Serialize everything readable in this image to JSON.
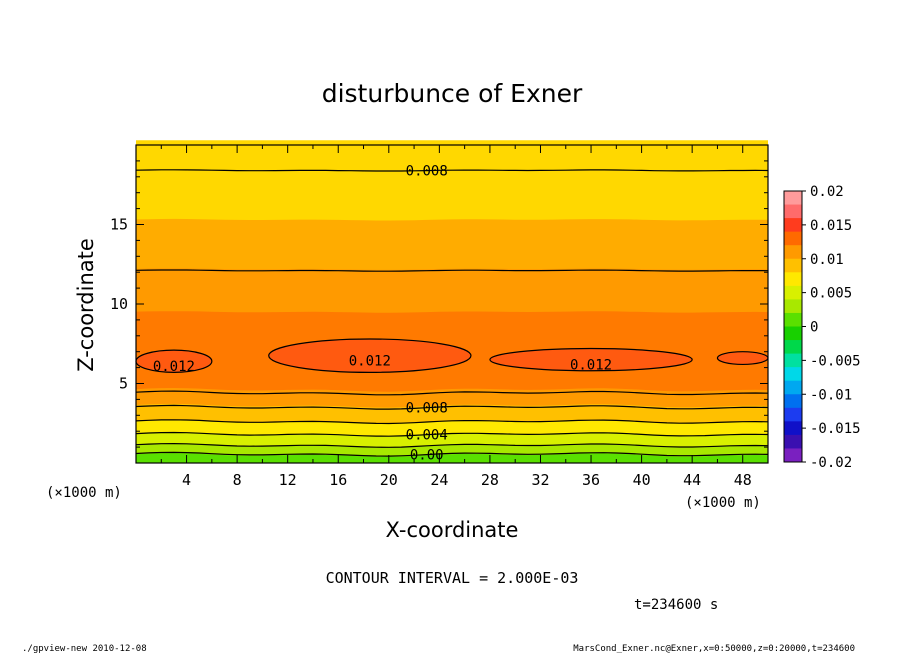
{
  "chart_data": {
    "type": "heatmap",
    "title": "disturbunce of Exner",
    "xlabel": "X-coordinate",
    "ylabel": "Z-coordinate",
    "x_unit": "(×1000 m)",
    "y_unit": "(×1000 m)",
    "xlim": [
      0,
      50
    ],
    "ylim": [
      0,
      20
    ],
    "x_ticks": [
      4,
      8,
      12,
      16,
      20,
      24,
      28,
      32,
      36,
      40,
      44,
      48
    ],
    "y_ticks": [
      5,
      10,
      15
    ],
    "colorbar": {
      "min": -0.02,
      "max": 0.02,
      "labels": [
        "0.02",
        "0.015",
        "0.01",
        "0.005",
        "0",
        "-0.005",
        "-0.01",
        "-0.015",
        "-0.02"
      ],
      "colors": [
        "#ff9b9b",
        "#ff6b6b",
        "#ff3c1e",
        "#ff6a00",
        "#ff9a00",
        "#ffc000",
        "#ffe800",
        "#d8f000",
        "#a8e800",
        "#5ae000",
        "#18d000",
        "#00d84a",
        "#00e0a0",
        "#00d8e8",
        "#00a8f0",
        "#0070f0",
        "#1c3cf0",
        "#1010c8",
        "#3a10b0",
        "#7a20c0"
      ]
    },
    "bands": [
      {
        "z_bottom": 0.0,
        "z_top": 0.5,
        "color": "#5ae000"
      },
      {
        "z_bottom": 0.5,
        "z_top": 1.1,
        "color": "#a8e800"
      },
      {
        "z_bottom": 1.1,
        "z_top": 1.8,
        "color": "#d8f000"
      },
      {
        "z_bottom": 1.8,
        "z_top": 2.6,
        "color": "#ffe800"
      },
      {
        "z_bottom": 2.6,
        "z_top": 3.6,
        "color": "#ffc000"
      },
      {
        "z_bottom": 3.6,
        "z_top": 4.6,
        "color": "#ff9a00"
      },
      {
        "z_bottom": 4.6,
        "z_top": 9.5,
        "color": "#ff7a00"
      },
      {
        "z_bottom": 9.5,
        "z_top": 12.2,
        "color": "#ff9a00"
      },
      {
        "z_bottom": 12.2,
        "z_top": 15.3,
        "color": "#ffac00"
      },
      {
        "z_bottom": 15.3,
        "z_top": 20.0,
        "color": "#ffd800"
      }
    ],
    "contours": [
      {
        "level": "0.00",
        "z": 0.55
      },
      {
        "level": "",
        "z": 1.1
      },
      {
        "level": "0.004",
        "z": 1.8
      },
      {
        "level": "",
        "z": 2.6
      },
      {
        "level": "0.008",
        "z": 3.5
      },
      {
        "level": "",
        "z": 4.4
      },
      {
        "level": "",
        "z": 12.1
      },
      {
        "level": "0.008",
        "z": 18.4
      }
    ],
    "max_regions": [
      {
        "level": "0.012",
        "x_range": [
          0,
          6
        ],
        "z_range": [
          5.7,
          7.1
        ]
      },
      {
        "level": "0.012",
        "x_range": [
          10.5,
          26.5
        ],
        "z_range": [
          5.7,
          7.8
        ]
      },
      {
        "level": "0.012",
        "x_range": [
          28,
          44
        ],
        "z_range": [
          5.8,
          7.2
        ]
      },
      {
        "level": "",
        "x_range": [
          46,
          50
        ],
        "z_range": [
          6.2,
          7.0
        ]
      }
    ]
  },
  "contour_interval": "CONTOUR INTERVAL = 2.000E-03",
  "time_label": "t=234600 s",
  "footer_left": "./gpview-new   2010-12-08",
  "footer_right": "MarsCond_Exner.nc@Exner,x=0:50000,z=0:20000,t=234600"
}
